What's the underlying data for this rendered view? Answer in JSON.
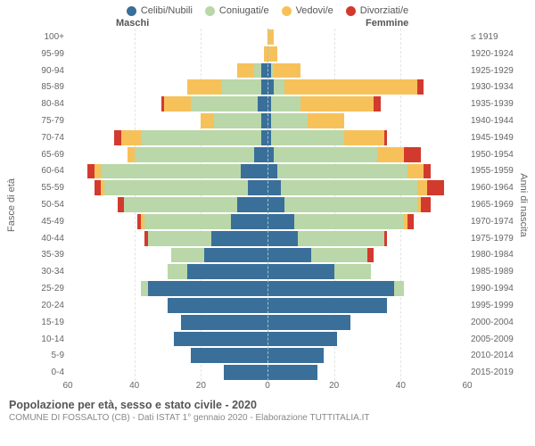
{
  "legend": [
    {
      "label": "Celibi/Nubili",
      "color": "#3a6f9a"
    },
    {
      "label": "Coniugati/e",
      "color": "#b9d7a8"
    },
    {
      "label": "Vedovi/e",
      "color": "#f7c15a"
    },
    {
      "label": "Divorziati/e",
      "color": "#d23a2e"
    }
  ],
  "headers": {
    "male": "Maschi",
    "female": "Femmine"
  },
  "axis_left_label": "Fasce di età",
  "axis_right_label": "Anni di nascita",
  "title": "Popolazione per età, sesso e stato civile - 2020",
  "subtitle": "COMUNE DI FOSSALTO (CB) - Dati ISTAT 1° gennaio 2020 - Elaborazione TUTTITALIA.IT",
  "xmax": 60,
  "xticks": [
    60,
    40,
    20,
    0,
    20,
    40,
    60
  ],
  "chart": {
    "type": "population-pyramid-stacked",
    "bar_gap": 2,
    "background_color": "#ffffff",
    "grid_color": "#e4e4e4",
    "centerline_color": "#9cc9c9",
    "tick_fontsize": 10,
    "label_fontsize": 11
  },
  "rows": [
    {
      "age": "100+",
      "birth": "≤ 1919",
      "m": [
        0,
        0,
        0,
        0
      ],
      "f": [
        0,
        0,
        2,
        0
      ]
    },
    {
      "age": "95-99",
      "birth": "1920-1924",
      "m": [
        0,
        0,
        1,
        0
      ],
      "f": [
        0,
        0,
        3,
        0
      ]
    },
    {
      "age": "90-94",
      "birth": "1925-1929",
      "m": [
        2,
        2,
        5,
        0
      ],
      "f": [
        1,
        1,
        8,
        0
      ]
    },
    {
      "age": "85-89",
      "birth": "1930-1934",
      "m": [
        2,
        12,
        10,
        0
      ],
      "f": [
        2,
        3,
        40,
        2
      ]
    },
    {
      "age": "80-84",
      "birth": "1935-1939",
      "m": [
        3,
        20,
        8,
        1
      ],
      "f": [
        1,
        9,
        22,
        2
      ]
    },
    {
      "age": "75-79",
      "birth": "1940-1944",
      "m": [
        2,
        14,
        4,
        0
      ],
      "f": [
        1,
        11,
        11,
        0
      ]
    },
    {
      "age": "70-74",
      "birth": "1945-1949",
      "m": [
        2,
        36,
        6,
        2
      ],
      "f": [
        1,
        22,
        12,
        1
      ]
    },
    {
      "age": "65-69",
      "birth": "1950-1954",
      "m": [
        4,
        36,
        2,
        0
      ],
      "f": [
        2,
        31,
        8,
        5
      ]
    },
    {
      "age": "60-64",
      "birth": "1955-1959",
      "m": [
        8,
        42,
        2,
        2
      ],
      "f": [
        3,
        39,
        5,
        2
      ]
    },
    {
      "age": "55-59",
      "birth": "1960-1964",
      "m": [
        6,
        43,
        1,
        2
      ],
      "f": [
        4,
        41,
        3,
        5
      ]
    },
    {
      "age": "50-54",
      "birth": "1965-1969",
      "m": [
        9,
        34,
        0,
        2
      ],
      "f": [
        5,
        40,
        1,
        3
      ]
    },
    {
      "age": "45-49",
      "birth": "1970-1974",
      "m": [
        11,
        26,
        1,
        1
      ],
      "f": [
        8,
        33,
        1,
        2
      ]
    },
    {
      "age": "40-44",
      "birth": "1975-1979",
      "m": [
        17,
        19,
        0,
        1
      ],
      "f": [
        9,
        26,
        0,
        1
      ]
    },
    {
      "age": "35-39",
      "birth": "1980-1984",
      "m": [
        19,
        10,
        0,
        0
      ],
      "f": [
        13,
        17,
        0,
        2
      ]
    },
    {
      "age": "30-34",
      "birth": "1985-1989",
      "m": [
        24,
        6,
        0,
        0
      ],
      "f": [
        20,
        11,
        0,
        0
      ]
    },
    {
      "age": "25-29",
      "birth": "1990-1994",
      "m": [
        36,
        2,
        0,
        0
      ],
      "f": [
        38,
        3,
        0,
        0
      ]
    },
    {
      "age": "20-24",
      "birth": "1995-1999",
      "m": [
        30,
        0,
        0,
        0
      ],
      "f": [
        36,
        0,
        0,
        0
      ]
    },
    {
      "age": "15-19",
      "birth": "2000-2004",
      "m": [
        26,
        0,
        0,
        0
      ],
      "f": [
        25,
        0,
        0,
        0
      ]
    },
    {
      "age": "10-14",
      "birth": "2005-2009",
      "m": [
        28,
        0,
        0,
        0
      ],
      "f": [
        21,
        0,
        0,
        0
      ]
    },
    {
      "age": "5-9",
      "birth": "2010-2014",
      "m": [
        23,
        0,
        0,
        0
      ],
      "f": [
        17,
        0,
        0,
        0
      ]
    },
    {
      "age": "0-4",
      "birth": "2015-2019",
      "m": [
        13,
        0,
        0,
        0
      ],
      "f": [
        15,
        0,
        0,
        0
      ]
    }
  ]
}
